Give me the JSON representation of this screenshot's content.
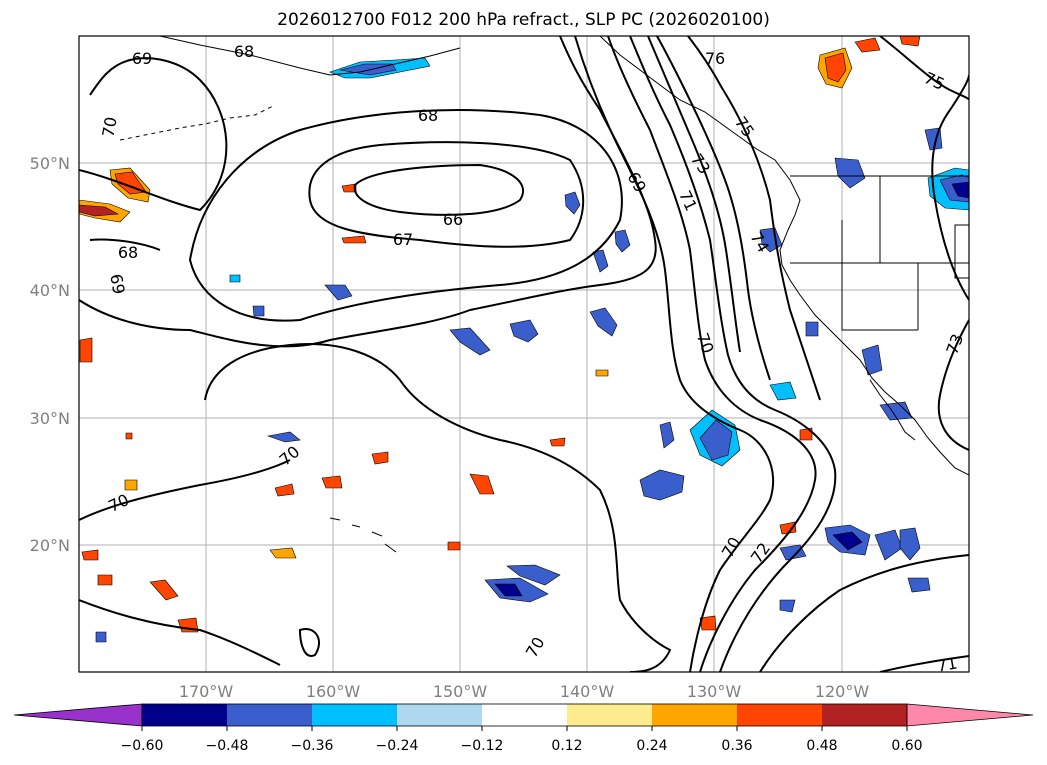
{
  "title": "2026012700 F012 200 hPa refract., SLP PC (2026020100)",
  "map": {
    "lat_labels": [
      "50°N",
      "40°N",
      "30°N",
      "20°N"
    ],
    "lon_labels": [
      "170°W",
      "160°W",
      "150°W",
      "140°W",
      "130°W",
      "120°W"
    ],
    "contour_labels": [
      "69",
      "68",
      "70",
      "68",
      "66",
      "67",
      "68",
      "69",
      "70",
      "69",
      "71",
      "73",
      "74",
      "75",
      "76",
      "75",
      "73",
      "70",
      "70",
      "70",
      "70",
      "72",
      "71"
    ]
  },
  "colorbar": {
    "ticks": [
      "−0.60",
      "−0.48",
      "−0.36",
      "−0.24",
      "−0.12",
      "0.12",
      "0.24",
      "0.36",
      "0.48",
      "0.60"
    ],
    "colors": [
      "#9932cc",
      "#00008b",
      "#3a5fcd",
      "#00bfff",
      "#add8f0",
      "#ffffff",
      "#fdeb8e",
      "#ffa500",
      "#ff4500",
      "#b22222",
      "#ff88aa"
    ]
  }
}
